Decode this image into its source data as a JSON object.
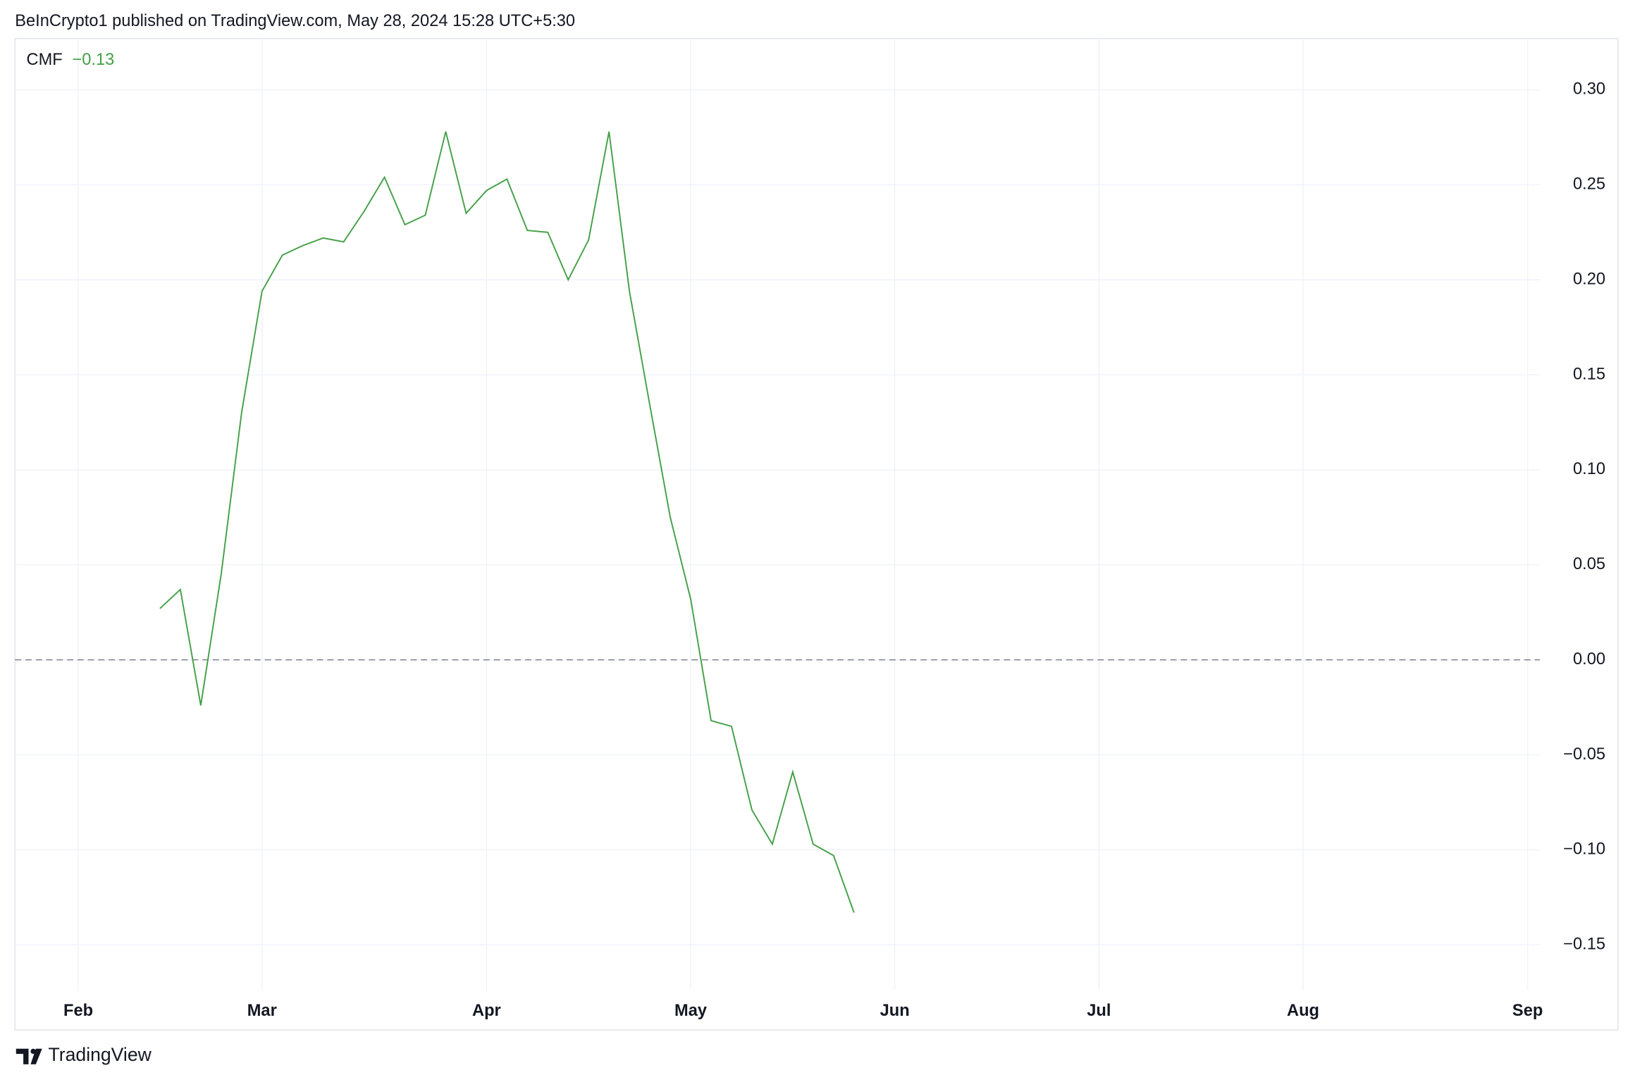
{
  "header": {
    "published": "BeInCrypto1 published on TradingView.com, May 28, 2024 15:28 UTC+5:30"
  },
  "footer": {
    "brand": "TradingView"
  },
  "chart_data": {
    "type": "line",
    "indicator": "CMF",
    "last_value_label": "−0.13",
    "x": [
      0,
      1,
      2,
      3,
      4,
      5,
      6,
      7,
      8,
      9,
      10,
      11,
      12,
      13,
      14,
      15,
      16,
      17,
      18,
      19,
      20,
      21,
      22,
      23,
      24,
      25,
      26,
      27,
      28,
      29,
      30,
      31,
      32,
      33,
      34
    ],
    "series": [
      {
        "name": "CMF",
        "color": "#43a047",
        "values": [
          0.027,
          0.037,
          -0.024,
          0.045,
          0.13,
          0.194,
          0.213,
          0.218,
          0.222,
          0.22,
          0.236,
          0.254,
          0.229,
          0.234,
          0.278,
          0.235,
          0.247,
          0.253,
          0.226,
          0.225,
          0.2,
          0.221,
          0.278,
          0.194,
          0.134,
          0.075,
          0.032,
          -0.032,
          -0.035,
          -0.079,
          -0.097,
          -0.059,
          -0.097,
          -0.103,
          -0.133
        ]
      }
    ],
    "xlim": [
      -7.1,
      67.6
    ],
    "xticks": [
      {
        "value": -4,
        "label": "Feb"
      },
      {
        "value": 5,
        "label": "Mar"
      },
      {
        "value": 16,
        "label": "Apr"
      },
      {
        "value": 26,
        "label": "May"
      },
      {
        "value": 36,
        "label": "Jun"
      },
      {
        "value": 46,
        "label": "Jul"
      },
      {
        "value": 56,
        "label": "Aug"
      },
      {
        "value": 67,
        "label": "Sep"
      }
    ],
    "ylim": [
      -0.174,
      0.327
    ],
    "yticks": [
      {
        "value": 0.3,
        "label": "0.30"
      },
      {
        "value": 0.25,
        "label": "0.25"
      },
      {
        "value": 0.2,
        "label": "0.20"
      },
      {
        "value": 0.15,
        "label": "0.15"
      },
      {
        "value": 0.1,
        "label": "0.10"
      },
      {
        "value": 0.05,
        "label": "0.05"
      },
      {
        "value": 0,
        "label": "0.00"
      },
      {
        "value": -0.05,
        "label": "−0.05"
      },
      {
        "value": -0.1,
        "label": "−0.10"
      },
      {
        "value": -0.15,
        "label": "−0.15"
      }
    ],
    "hline": 0,
    "grid": true
  }
}
